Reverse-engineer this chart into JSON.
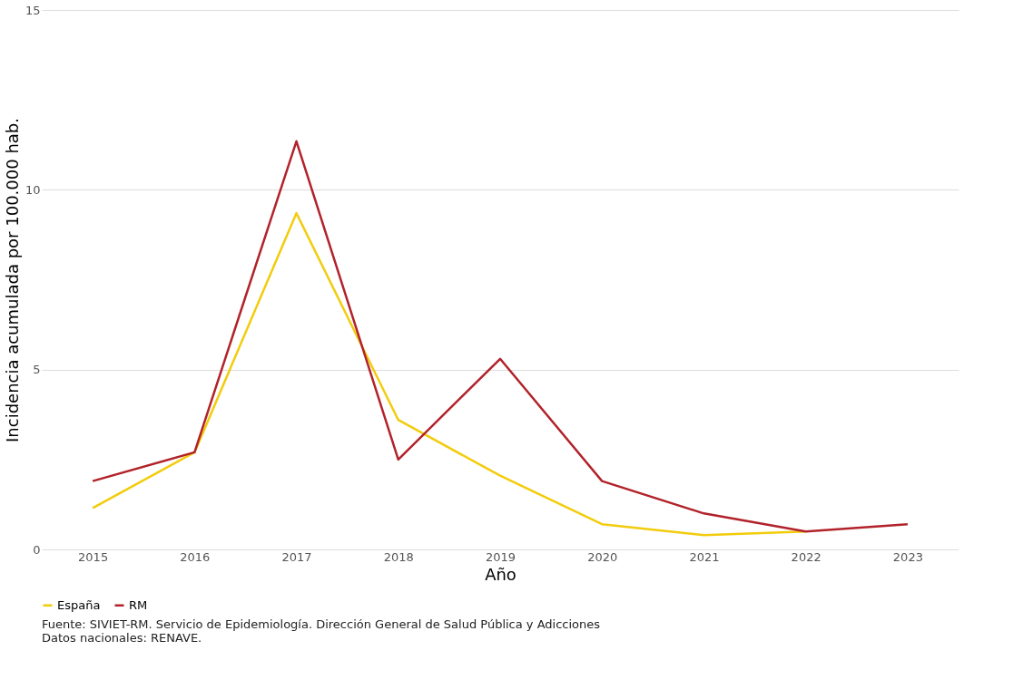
{
  "chart_data": {
    "type": "line",
    "xlabel": "Año",
    "ylabel": "Incidencia acumulada por 100.000 hab.",
    "categories": [
      "2015",
      "2016",
      "2017",
      "2018",
      "2019",
      "2020",
      "2021",
      "2022",
      "2023"
    ],
    "series": [
      {
        "name": "España",
        "color": "#f2cc0c",
        "values": [
          1.15,
          2.7,
          9.35,
          3.6,
          2.05,
          0.7,
          0.4,
          0.5,
          null
        ]
      },
      {
        "name": "RM",
        "color": "#b2222a",
        "values": [
          1.9,
          2.7,
          11.35,
          2.5,
          5.3,
          1.9,
          1.0,
          0.5,
          0.7
        ]
      }
    ],
    "ylim": [
      0,
      15
    ],
    "yticks": [
      0,
      5,
      10,
      15
    ],
    "grid": "y",
    "legend": "bottom",
    "marker": "none",
    "line_style": "solid",
    "annotations": [
      "Fuente: SIVIET-RM. Servicio de Epidemiología. Dirección General de Salud Pública y Adicciones",
      "Datos nacionales: RENAVE."
    ]
  }
}
